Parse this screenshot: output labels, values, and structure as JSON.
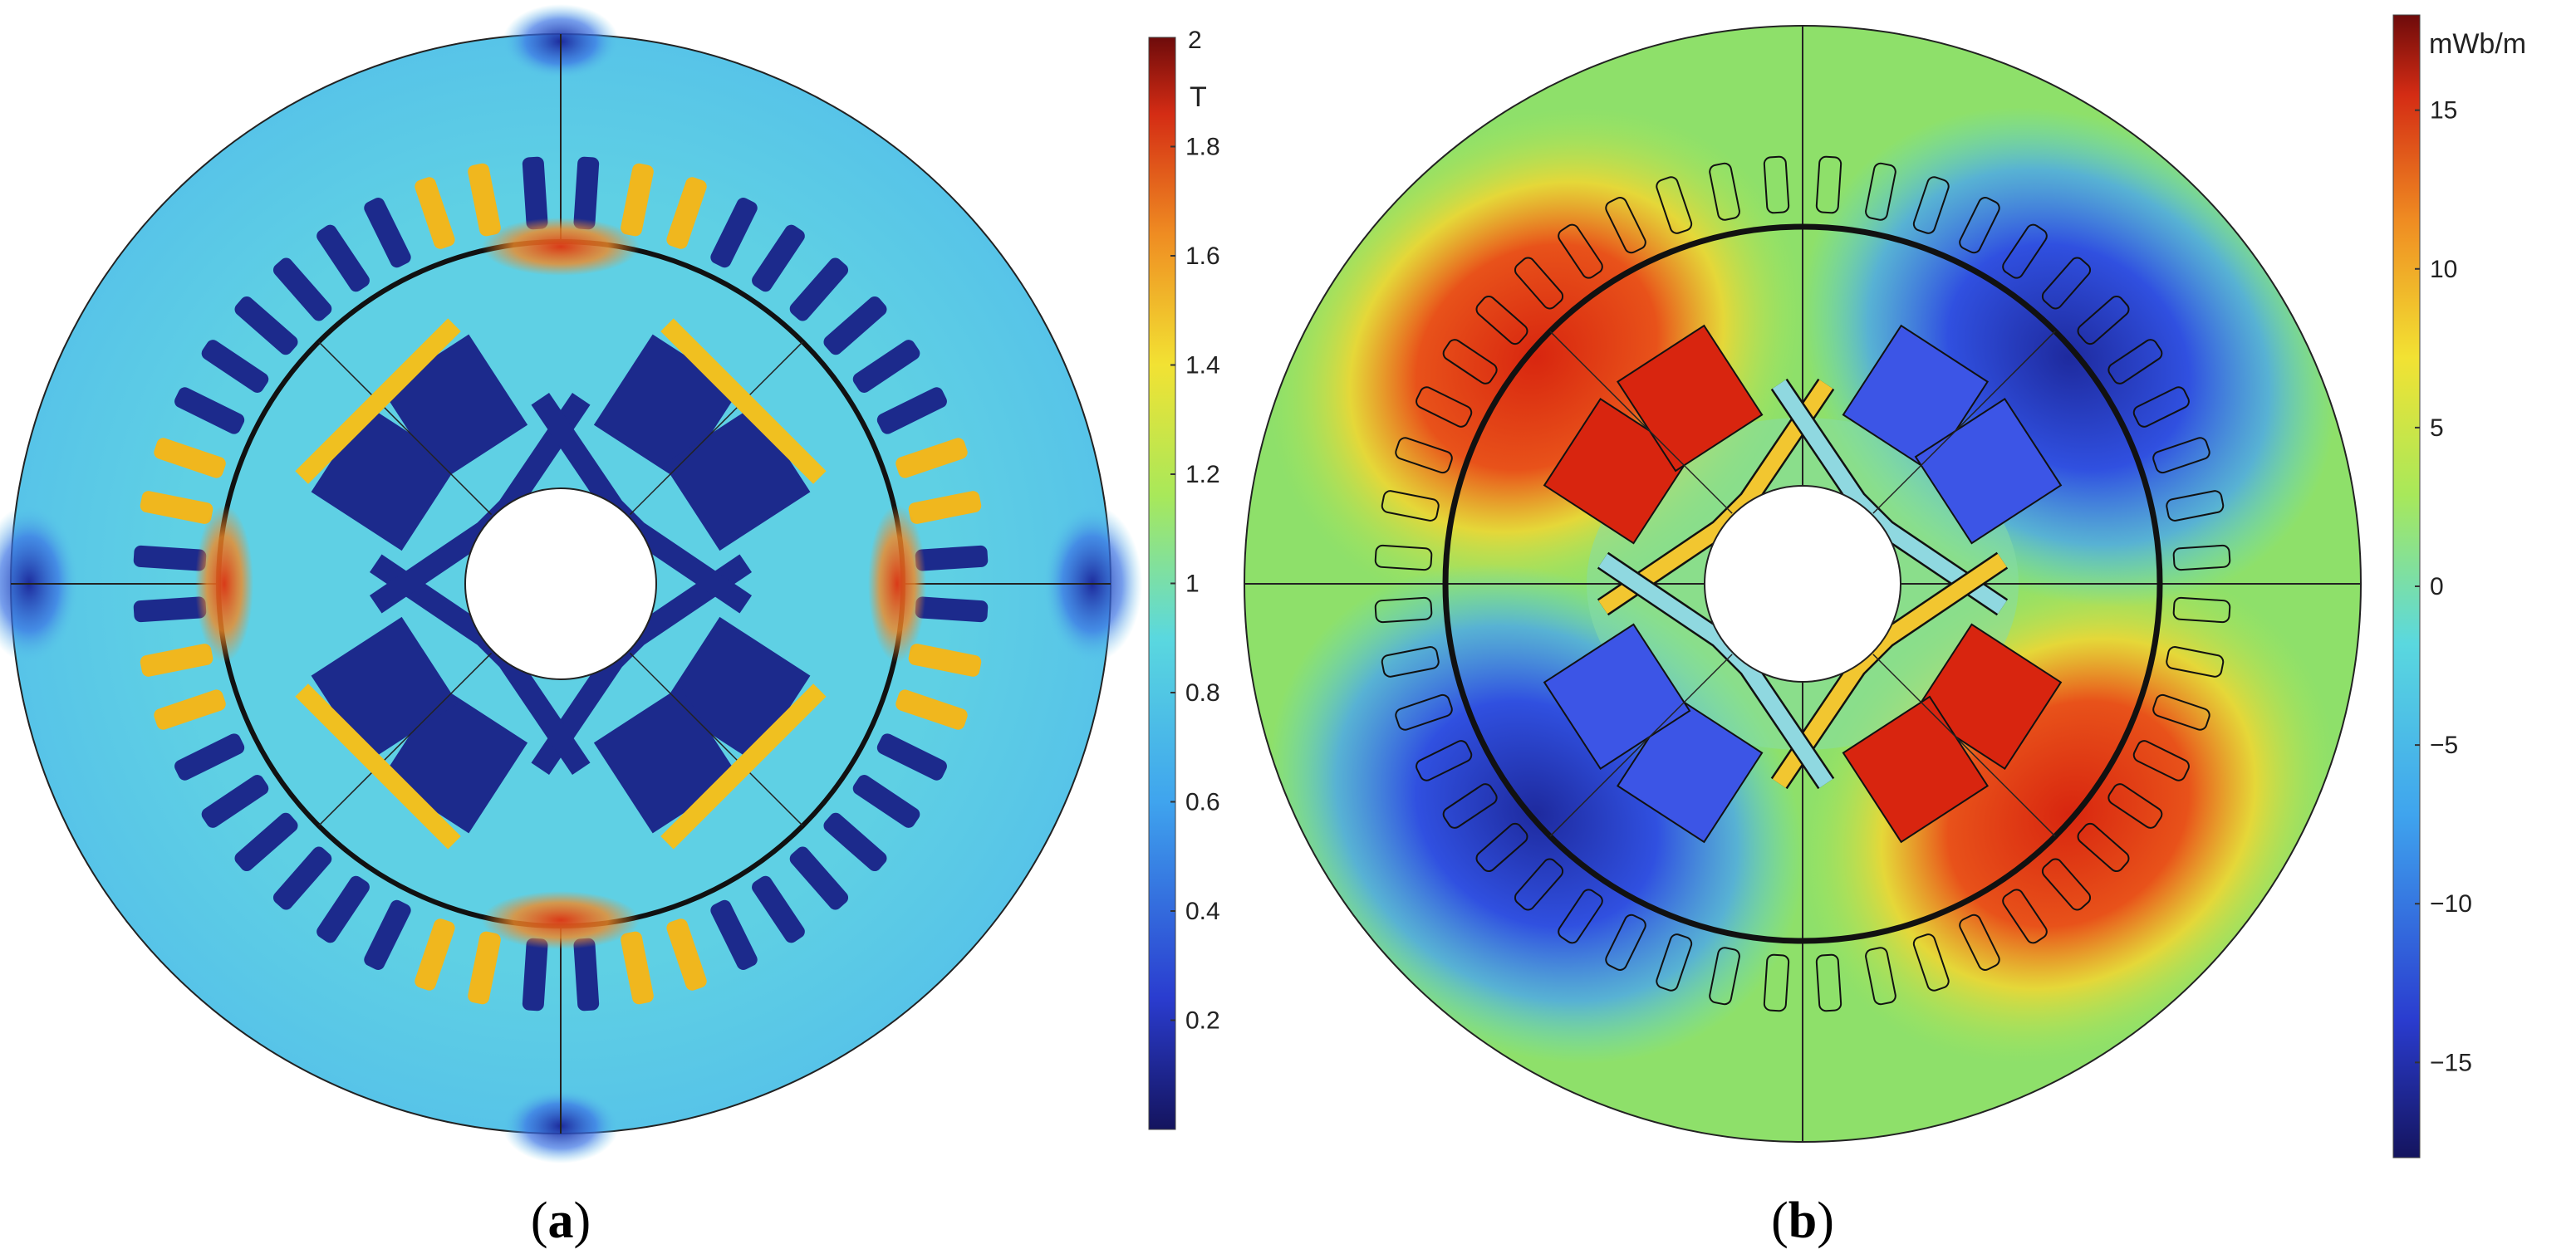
{
  "panels": [
    {
      "id": "a",
      "label_open": "(",
      "label_letter": "a",
      "label_close": ")",
      "colorbar": {
        "unit": "T",
        "max_label": "2",
        "ticks": [
          "1.8",
          "1.6",
          "1.4",
          "1.2",
          "1",
          "0.8",
          "0.6",
          "0.4",
          "0.2"
        ],
        "min_value": 0,
        "max_value": 2
      }
    },
    {
      "id": "b",
      "label_open": "(",
      "label_letter": "b",
      "label_close": ")",
      "colorbar": {
        "unit": "mWb/m",
        "ticks": [
          "15",
          "10",
          "5",
          "0",
          "−5",
          "−10",
          "−15"
        ],
        "min_value": -18,
        "max_value": 18
      }
    }
  ],
  "colors": {
    "jet_dark_blue": "#1a1a7a",
    "jet_blue": "#3f5ee8",
    "jet_cyan": "#5ad4e8",
    "jet_green": "#a6e85a",
    "jet_yellow": "#f0e033",
    "jet_orange": "#ee8a22",
    "jet_red": "#d62a14",
    "jet_dark_red": "#7a0d0d"
  }
}
